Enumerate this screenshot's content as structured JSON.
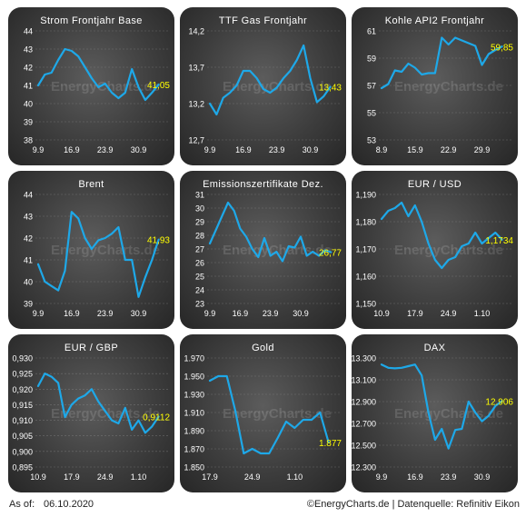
{
  "footer": {
    "asof_label": "As of:",
    "date": "06.10.2020",
    "credit": "©EnergyCharts.de | Datenquelle: Refinitiv Eikon"
  },
  "watermark": "EnergyCharts.de",
  "colors": {
    "line": "#1ea8e8",
    "last_value": "#ffff00",
    "text": "#ffffff",
    "grid": "#8a8a8a"
  },
  "chart_data": [
    {
      "type": "line",
      "title": "Strom Frontjahr Base",
      "yticks": [
        "44",
        "43",
        "42",
        "41",
        "40",
        "39",
        "38"
      ],
      "ylim": [
        38,
        44
      ],
      "xticks": [
        {
          "label": "9.9",
          "x": 0
        },
        {
          "label": "16.9",
          "x": 5
        },
        {
          "label": "23.9",
          "x": 10
        },
        {
          "label": "30.9",
          "x": 15
        }
      ],
      "xlim": [
        0,
        19
      ],
      "points": [
        [
          0,
          41.0
        ],
        [
          1,
          41.6
        ],
        [
          2,
          41.7
        ],
        [
          3,
          42.4
        ],
        [
          4,
          43.0
        ],
        [
          5,
          42.9
        ],
        [
          6,
          42.6
        ],
        [
          7,
          42.0
        ],
        [
          8,
          41.4
        ],
        [
          9,
          40.9
        ],
        [
          10,
          41.1
        ],
        [
          11,
          40.6
        ],
        [
          12,
          40.3
        ],
        [
          13,
          40.6
        ],
        [
          14,
          41.9
        ],
        [
          15,
          40.9
        ],
        [
          16,
          40.2
        ],
        [
          17,
          40.6
        ],
        [
          18,
          41.05
        ]
      ],
      "last_value": "41,05"
    },
    {
      "type": "line",
      "title": "TTF Gas Frontjahr",
      "yticks": [
        "14,2",
        "13,7",
        "13,2",
        "12,7"
      ],
      "ylim": [
        12.7,
        14.2
      ],
      "xticks": [
        {
          "label": "9.9",
          "x": 0
        },
        {
          "label": "16.9",
          "x": 5
        },
        {
          "label": "23.9",
          "x": 10
        },
        {
          "label": "30.9",
          "x": 15
        }
      ],
      "xlim": [
        0,
        19
      ],
      "points": [
        [
          0,
          13.2
        ],
        [
          1,
          13.05
        ],
        [
          2,
          13.28
        ],
        [
          3,
          13.35
        ],
        [
          4,
          13.45
        ],
        [
          5,
          13.65
        ],
        [
          6,
          13.65
        ],
        [
          7,
          13.55
        ],
        [
          8,
          13.4
        ],
        [
          9,
          13.35
        ],
        [
          10,
          13.42
        ],
        [
          11,
          13.55
        ],
        [
          12,
          13.65
        ],
        [
          13,
          13.8
        ],
        [
          14,
          14.0
        ],
        [
          15,
          13.55
        ],
        [
          16,
          13.22
        ],
        [
          17,
          13.3
        ],
        [
          18,
          13.43
        ]
      ],
      "last_value": "13,43"
    },
    {
      "type": "line",
      "title": "Kohle API2 Frontjahr",
      "yticks": [
        "61",
        "59",
        "57",
        "55",
        "53"
      ],
      "ylim": [
        53,
        61
      ],
      "xticks": [
        {
          "label": "8.9",
          "x": 0
        },
        {
          "label": "15.9",
          "x": 5
        },
        {
          "label": "22.9",
          "x": 10
        },
        {
          "label": "29.9",
          "x": 15
        }
      ],
      "xlim": [
        0,
        19
      ],
      "points": [
        [
          0,
          56.8
        ],
        [
          1,
          57.1
        ],
        [
          2,
          58.1
        ],
        [
          3,
          58.0
        ],
        [
          4,
          58.6
        ],
        [
          5,
          58.3
        ],
        [
          6,
          57.8
        ],
        [
          7,
          57.9
        ],
        [
          8,
          57.9
        ],
        [
          9,
          60.5
        ],
        [
          10,
          60.0
        ],
        [
          11,
          60.5
        ],
        [
          12,
          60.3
        ],
        [
          13,
          60.1
        ],
        [
          14,
          59.9
        ],
        [
          15,
          58.5
        ],
        [
          16,
          59.3
        ],
        [
          17,
          59.6
        ],
        [
          18,
          59.85
        ]
      ],
      "last_value": "59,85"
    },
    {
      "type": "line",
      "title": "Brent",
      "yticks": [
        "44",
        "43",
        "42",
        "41",
        "40",
        "39"
      ],
      "ylim": [
        39,
        44
      ],
      "xticks": [
        {
          "label": "9.9",
          "x": 0
        },
        {
          "label": "16.9",
          "x": 5
        },
        {
          "label": "23.9",
          "x": 10
        },
        {
          "label": "30.9",
          "x": 15
        }
      ],
      "xlim": [
        0,
        19
      ],
      "points": [
        [
          0,
          40.8
        ],
        [
          1,
          40.0
        ],
        [
          2,
          39.8
        ],
        [
          3,
          39.6
        ],
        [
          4,
          40.5
        ],
        [
          5,
          43.2
        ],
        [
          6,
          42.9
        ],
        [
          7,
          42.0
        ],
        [
          8,
          41.5
        ],
        [
          9,
          41.9
        ],
        [
          10,
          42.0
        ],
        [
          11,
          42.2
        ],
        [
          12,
          42.5
        ],
        [
          13,
          41.0
        ],
        [
          14,
          41.0
        ],
        [
          15,
          39.3
        ],
        [
          16,
          40.2
        ],
        [
          17,
          41.0
        ],
        [
          18,
          41.93
        ]
      ],
      "last_value": "41,93"
    },
    {
      "type": "line",
      "title": "Emissionszertifikate Dez.",
      "yticks": [
        "31",
        "30",
        "29",
        "28",
        "27",
        "26",
        "25",
        "24",
        "23"
      ],
      "ylim": [
        23,
        31
      ],
      "xticks": [
        {
          "label": "9.9",
          "x": 0
        },
        {
          "label": "16.9",
          "x": 5
        },
        {
          "label": "23.9",
          "x": 10
        },
        {
          "label": "30.9",
          "x": 15
        }
      ],
      "xlim": [
        0,
        21
      ],
      "points": [
        [
          0,
          27.4
        ],
        [
          1,
          28.4
        ],
        [
          2,
          29.4
        ],
        [
          3,
          30.4
        ],
        [
          4,
          29.8
        ],
        [
          5,
          28.5
        ],
        [
          6,
          27.9
        ],
        [
          7,
          27.0
        ],
        [
          8,
          26.4
        ],
        [
          9,
          27.8
        ],
        [
          10,
          26.5
        ],
        [
          11,
          26.8
        ],
        [
          12,
          26.1
        ],
        [
          13,
          27.2
        ],
        [
          14,
          27.1
        ],
        [
          15,
          27.9
        ],
        [
          16,
          26.5
        ],
        [
          17,
          26.8
        ],
        [
          18,
          26.5
        ],
        [
          19,
          26.9
        ],
        [
          20,
          26.77
        ]
      ],
      "last_value": "26,77"
    },
    {
      "type": "line",
      "title": "EUR / USD",
      "yticks": [
        "1,190",
        "1,180",
        "1,170",
        "1,160",
        "1,150"
      ],
      "ylim": [
        1.15,
        1.19
      ],
      "xticks": [
        {
          "label": "10.9",
          "x": 0
        },
        {
          "label": "17.9",
          "x": 5
        },
        {
          "label": "24.9",
          "x": 10
        },
        {
          "label": "1.10",
          "x": 15
        }
      ],
      "xlim": [
        0,
        19
      ],
      "points": [
        [
          0,
          1.181
        ],
        [
          1,
          1.184
        ],
        [
          2,
          1.185
        ],
        [
          3,
          1.187
        ],
        [
          4,
          1.182
        ],
        [
          5,
          1.186
        ],
        [
          6,
          1.18
        ],
        [
          7,
          1.172
        ],
        [
          8,
          1.166
        ],
        [
          9,
          1.163
        ],
        [
          10,
          1.166
        ],
        [
          11,
          1.167
        ],
        [
          12,
          1.171
        ],
        [
          13,
          1.172
        ],
        [
          14,
          1.176
        ],
        [
          15,
          1.172
        ],
        [
          16,
          1.174
        ],
        [
          17,
          1.176
        ],
        [
          18,
          1.1734
        ]
      ],
      "last_value": "1,1734"
    },
    {
      "type": "line",
      "title": "EUR / GBP",
      "yticks": [
        "0,930",
        "0,925",
        "0,920",
        "0,915",
        "0,910",
        "0,905",
        "0,900",
        "0,895"
      ],
      "ylim": [
        0.895,
        0.93
      ],
      "xticks": [
        {
          "label": "10.9",
          "x": 0
        },
        {
          "label": "17.9",
          "x": 5
        },
        {
          "label": "24.9",
          "x": 10
        },
        {
          "label": "1.10",
          "x": 15
        }
      ],
      "xlim": [
        0,
        19
      ],
      "points": [
        [
          0,
          0.921
        ],
        [
          1,
          0.925
        ],
        [
          2,
          0.924
        ],
        [
          3,
          0.922
        ],
        [
          4,
          0.911
        ],
        [
          5,
          0.915
        ],
        [
          6,
          0.917
        ],
        [
          7,
          0.918
        ],
        [
          8,
          0.92
        ],
        [
          9,
          0.916
        ],
        [
          10,
          0.913
        ],
        [
          11,
          0.91
        ],
        [
          12,
          0.909
        ],
        [
          13,
          0.914
        ],
        [
          14,
          0.907
        ],
        [
          15,
          0.91
        ],
        [
          16,
          0.906
        ],
        [
          17,
          0.908
        ],
        [
          18,
          0.9112
        ]
      ],
      "last_value": "0,9112"
    },
    {
      "type": "line",
      "title": "Gold",
      "yticks": [
        "1.970",
        "1.950",
        "1.930",
        "1.910",
        "1.890",
        "1.870",
        "1.850"
      ],
      "ylim": [
        1850,
        1970
      ],
      "xticks": [
        {
          "label": "17.9",
          "x": 0
        },
        {
          "label": "24.9",
          "x": 5
        },
        {
          "label": "1.10",
          "x": 10
        }
      ],
      "xlim": [
        0,
        15
      ],
      "points": [
        [
          0,
          1945
        ],
        [
          1,
          1950
        ],
        [
          2,
          1950
        ],
        [
          3,
          1912
        ],
        [
          4,
          1865
        ],
        [
          5,
          1870
        ],
        [
          6,
          1865
        ],
        [
          7,
          1865
        ],
        [
          8,
          1882
        ],
        [
          9,
          1900
        ],
        [
          10,
          1893
        ],
        [
          11,
          1902
        ],
        [
          12,
          1902
        ],
        [
          13,
          1910
        ],
        [
          14,
          1877
        ]
      ],
      "last_value": "1.877"
    },
    {
      "type": "line",
      "title": "DAX",
      "yticks": [
        "13.300",
        "13.100",
        "12.900",
        "12.700",
        "12.500",
        "12.300"
      ],
      "ylim": [
        12300,
        13300
      ],
      "xticks": [
        {
          "label": "9.9",
          "x": 0
        },
        {
          "label": "16.9",
          "x": 5
        },
        {
          "label": "23.9",
          "x": 10
        },
        {
          "label": "30.9",
          "x": 15
        }
      ],
      "xlim": [
        0,
        19
      ],
      "points": [
        [
          0,
          13240
        ],
        [
          1,
          13210
        ],
        [
          2,
          13205
        ],
        [
          3,
          13210
        ],
        [
          4,
          13225
        ],
        [
          5,
          13240
        ],
        [
          6,
          13140
        ],
        [
          7,
          12800
        ],
        [
          8,
          12550
        ],
        [
          9,
          12650
        ],
        [
          10,
          12470
        ],
        [
          11,
          12640
        ],
        [
          12,
          12650
        ],
        [
          13,
          12900
        ],
        [
          14,
          12800
        ],
        [
          15,
          12720
        ],
        [
          16,
          12770
        ],
        [
          17,
          12860
        ],
        [
          18,
          12906
        ]
      ],
      "last_value": "12.906"
    }
  ]
}
